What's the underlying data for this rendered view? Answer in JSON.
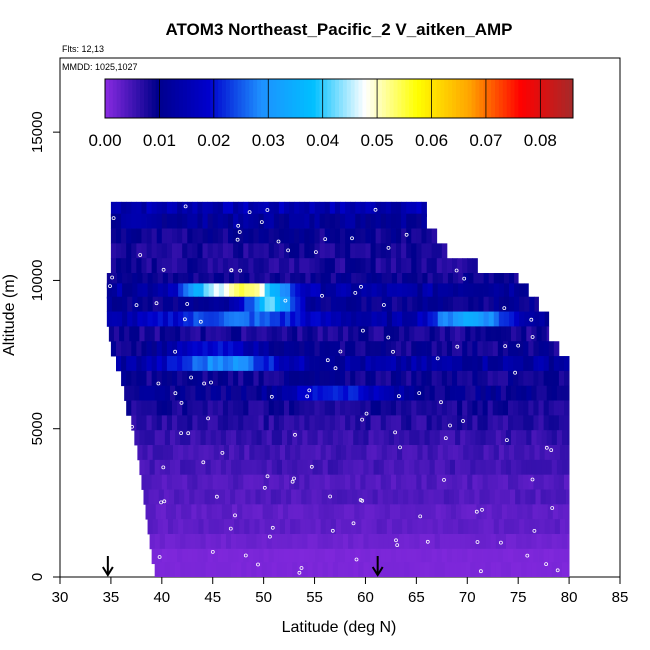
{
  "chart_data": {
    "type": "heatmap",
    "title": "ATOM3 Northeast_Pacific_2 V_aitken_AMP",
    "subtitle_lines": [
      "Flts: 12,13",
      "MMDD: 1025,1027"
    ],
    "xlabel": "Latitude (deg N)",
    "ylabel": "Altitude (m)",
    "xlim": [
      30,
      85
    ],
    "ylim": [
      0,
      17500
    ],
    "x_ticks": [
      30,
      35,
      40,
      45,
      50,
      55,
      60,
      65,
      70,
      75,
      80,
      85
    ],
    "y_ticks": [
      0,
      5000,
      10000,
      15000
    ],
    "colorbar": {
      "range": [
        0,
        0.086
      ],
      "ticks": [
        "0.00",
        "0.01",
        "0.02",
        "0.03",
        "0.04",
        "0.05",
        "0.06",
        "0.07",
        "0.08"
      ],
      "tick_values": [
        0,
        0.01,
        0.02,
        0.03,
        0.04,
        0.05,
        0.06,
        0.07,
        0.08
      ],
      "colors": [
        "#8a2be2",
        "#00008b",
        "#0000cd",
        "#1e90ff",
        "#00bfff",
        "#ffffff",
        "#ffff00",
        "#ffa500",
        "#ff0000",
        "#a52a2a"
      ]
    },
    "arrows_lat": [
      34.7,
      61.2
    ],
    "layers": [
      {
        "alt": 12400,
        "lat": [
          35,
          66
        ],
        "base": 0.015
      },
      {
        "alt": 12000,
        "lat": [
          35,
          66
        ],
        "base": 0.012
      },
      {
        "alt": 11500,
        "lat": [
          35,
          67
        ],
        "base": 0.009
      },
      {
        "alt": 11000,
        "lat": [
          35,
          68
        ],
        "base": 0.008
      },
      {
        "alt": 10500,
        "lat": [
          35,
          71
        ],
        "base": 0.008
      },
      {
        "alt": 10000,
        "lat": [
          34.6,
          75
        ],
        "base": 0.009
      },
      {
        "alt": 9650,
        "lat": [
          34.6,
          76
        ],
        "base": 0.013,
        "hot": [
          {
            "lat": 48,
            "w": 4,
            "amp": 0.038
          },
          {
            "lat": 44,
            "w": 3,
            "amp": 0.012
          }
        ]
      },
      {
        "alt": 9200,
        "lat": [
          34.6,
          77
        ],
        "base": 0.01,
        "hot": [
          {
            "lat": 50.5,
            "w": 2.5,
            "amp": 0.03
          }
        ]
      },
      {
        "alt": 8700,
        "lat": [
          34.6,
          78
        ],
        "base": 0.012,
        "hot": [
          {
            "lat": 70,
            "w": 4,
            "amp": 0.022
          },
          {
            "lat": 47,
            "w": 8,
            "amp": 0.014
          }
        ]
      },
      {
        "alt": 8200,
        "lat": [
          34.8,
          78
        ],
        "base": 0.008
      },
      {
        "alt": 7700,
        "lat": [
          35,
          79
        ],
        "base": 0.009,
        "hot": [
          {
            "lat": 45,
            "w": 5,
            "amp": 0.01
          }
        ]
      },
      {
        "alt": 7200,
        "lat": [
          35.5,
          80
        ],
        "base": 0.013,
        "hot": [
          {
            "lat": 46,
            "w": 5,
            "amp": 0.017
          }
        ]
      },
      {
        "alt": 6700,
        "lat": [
          36,
          80
        ],
        "base": 0.009
      },
      {
        "alt": 6200,
        "lat": [
          36.3,
          80
        ],
        "base": 0.01,
        "hot": [
          {
            "lat": 57,
            "w": 5,
            "amp": 0.012
          }
        ]
      },
      {
        "alt": 5700,
        "lat": [
          36.5,
          80
        ],
        "base": 0.008
      },
      {
        "alt": 5200,
        "lat": [
          37,
          80
        ],
        "base": 0.007
      },
      {
        "alt": 4700,
        "lat": [
          37.3,
          80
        ],
        "base": 0.006
      },
      {
        "alt": 4200,
        "lat": [
          37.6,
          80
        ],
        "base": 0.005
      },
      {
        "alt": 3700,
        "lat": [
          37.8,
          80
        ],
        "base": 0.005
      },
      {
        "alt": 3200,
        "lat": [
          38,
          80
        ],
        "base": 0.004
      },
      {
        "alt": 2700,
        "lat": [
          38.2,
          80
        ],
        "base": 0.004
      },
      {
        "alt": 2200,
        "lat": [
          38.4,
          80
        ],
        "base": 0.003
      },
      {
        "alt": 1700,
        "lat": [
          38.6,
          80
        ],
        "base": 0.003
      },
      {
        "alt": 1200,
        "lat": [
          38.8,
          80
        ],
        "base": 0.002
      },
      {
        "alt": 700,
        "lat": [
          39,
          80
        ],
        "base": 0.001
      },
      {
        "alt": 250,
        "lat": [
          39.3,
          80
        ],
        "base": 0.001
      }
    ]
  }
}
